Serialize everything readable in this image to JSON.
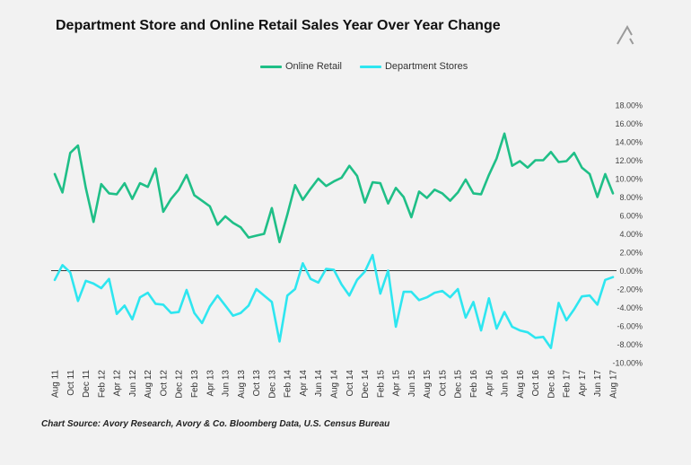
{
  "title": "Department Store and Online Retail Sales Year Over Year Change",
  "source": "Chart Source:  Avory Research, Avory & Co. Bloomberg Data, U.S. Census Bureau",
  "logo_icon": "avory-logo-icon",
  "chart_data": {
    "type": "line",
    "title": "Department Store and Online Retail Sales Year Over Year Change",
    "xlabel": "",
    "ylabel": "",
    "ylim": [
      -10,
      18
    ],
    "y_axis_side": "right",
    "grid": false,
    "zero_line": true,
    "legend_position": "top-center",
    "y_ticks": [
      "18.00%",
      "16.00%",
      "14.00%",
      "12.00%",
      "10.00%",
      "8.00%",
      "6.00%",
      "4.00%",
      "2.00%",
      "0.00%",
      "-2.00%",
      "-4.00%",
      "-6.00%",
      "-8.00%",
      "-10.00%"
    ],
    "x_tick_labels": [
      "Aug 11",
      "Oct 11",
      "Dec 11",
      "Feb 12",
      "Apr 12",
      "Jun 12",
      "Aug 12",
      "Oct 12",
      "Dec 12",
      "Feb 13",
      "Apr 13",
      "Jun 13",
      "Aug 13",
      "Oct 13",
      "Dec 13",
      "Feb 14",
      "Apr 14",
      "Jun 14",
      "Aug 14",
      "Oct 14",
      "Dec 14",
      "Feb 15",
      "Apr 15",
      "Jun 15",
      "Aug 15",
      "Oct 15",
      "Dec 15",
      "Feb 16",
      "Apr 16",
      "Jun 16",
      "Aug 16",
      "Oct 16",
      "Dec 16",
      "Feb 17",
      "Apr 17",
      "Jun 17",
      "Aug 17"
    ],
    "series": [
      {
        "name": "Online Retail",
        "color": "#1fbf87",
        "values": [
          10.5,
          8.5,
          12.8,
          13.6,
          9.0,
          5.3,
          9.4,
          8.4,
          8.3,
          9.5,
          7.8,
          9.5,
          9.1,
          11.1,
          6.4,
          7.8,
          8.8,
          10.4,
          8.2,
          7.6,
          7.0,
          5.0,
          5.9,
          5.2,
          4.7,
          3.6,
          3.8,
          4.0,
          6.8,
          3.1,
          6.1,
          9.3,
          7.7,
          8.9,
          10.0,
          9.2,
          9.7,
          10.1,
          11.4,
          10.3,
          7.4,
          9.6,
          9.5,
          7.3,
          9.0,
          8.0,
          5.8,
          8.6,
          7.9,
          8.8,
          8.4,
          7.6,
          8.5,
          9.9,
          8.4,
          8.3,
          10.4,
          12.2,
          14.9,
          11.4,
          11.9,
          11.2,
          12.0,
          12.0,
          12.9,
          11.8,
          11.9,
          12.8,
          11.2,
          10.5,
          8.0,
          10.5,
          8.4
        ]
      },
      {
        "name": "Department Stores",
        "color": "#2ee6f0",
        "values": [
          -1.0,
          0.6,
          -0.2,
          -3.3,
          -1.1,
          -1.4,
          -1.9,
          -0.9,
          -4.7,
          -3.8,
          -5.3,
          -2.9,
          -2.4,
          -3.6,
          -3.7,
          -4.6,
          -4.5,
          -2.1,
          -4.6,
          -5.7,
          -3.9,
          -2.7,
          -3.8,
          -4.9,
          -4.6,
          -3.8,
          -2.0,
          -2.7,
          -3.4,
          -7.7,
          -2.7,
          -2.0,
          0.8,
          -0.9,
          -1.3,
          0.2,
          0.1,
          -1.5,
          -2.7,
          -1.0,
          -0.1,
          1.7,
          -2.5,
          0.0,
          -6.1,
          -2.3,
          -2.3,
          -3.2,
          -2.9,
          -2.4,
          -2.2,
          -2.9,
          -2.0,
          -5.1,
          -3.4,
          -6.5,
          -3.0,
          -6.3,
          -4.5,
          -6.1,
          -6.5,
          -6.7,
          -7.3,
          -7.2,
          -8.4,
          -3.5,
          -5.4,
          -4.2,
          -2.8,
          -2.7,
          -3.7,
          -1.0,
          -0.7
        ]
      }
    ]
  }
}
